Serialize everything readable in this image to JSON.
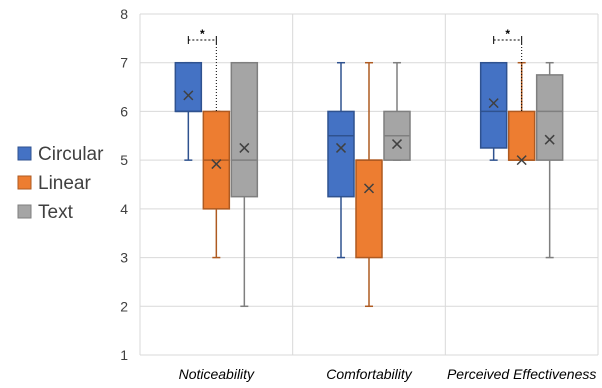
{
  "chart_data": {
    "type": "box",
    "categories": [
      "Noticeability",
      "Comfortability",
      "Perceived Effectiveness"
    ],
    "ylim": [
      1,
      8
    ],
    "yticks": [
      1,
      2,
      3,
      4,
      5,
      6,
      7,
      8
    ],
    "grid": true,
    "legend_position": "left",
    "series": [
      {
        "name": "Circular",
        "color": "#4472C4",
        "edge": "#2F528F",
        "boxes": [
          {
            "min": 5,
            "q1": 6,
            "median": 6,
            "q3": 7,
            "max": 7,
            "mean": 6.33
          },
          {
            "min": 3,
            "q1": 4.25,
            "median": 5.5,
            "q3": 6,
            "max": 7,
            "mean": 5.25
          },
          {
            "min": 5,
            "q1": 5.25,
            "median": 6,
            "q3": 7,
            "max": 7,
            "mean": 6.17
          }
        ]
      },
      {
        "name": "Linear",
        "color": "#ED7D31",
        "edge": "#AE5A21",
        "boxes": [
          {
            "min": 3,
            "q1": 4,
            "median": 5,
            "q3": 6,
            "max": 6,
            "mean": 4.92
          },
          {
            "min": 2,
            "q1": 3,
            "median": 5,
            "q3": 5,
            "max": 7,
            "mean": 4.42
          },
          {
            "min": 5,
            "q1": 5,
            "median": 5,
            "q3": 6,
            "max": 7,
            "mean": 5.0
          }
        ]
      },
      {
        "name": "Text",
        "color": "#A5A5A5",
        "edge": "#7F7F7F",
        "boxes": [
          {
            "min": 2,
            "q1": 4.25,
            "median": 5,
            "q3": 7,
            "max": 7,
            "mean": 5.25
          },
          {
            "min": 5,
            "q1": 5,
            "median": 5.5,
            "q3": 6,
            "max": 7,
            "mean": 5.33
          },
          {
            "min": 3,
            "q1": 5,
            "median": 6,
            "q3": 6.75,
            "max": 7,
            "mean": 5.42
          }
        ]
      }
    ],
    "annotations": [
      {
        "label": "*",
        "category": 0,
        "from_series": 0,
        "to_series": 1
      },
      {
        "label": "*",
        "category": 2,
        "from_series": 0,
        "to_series": 1
      }
    ]
  }
}
